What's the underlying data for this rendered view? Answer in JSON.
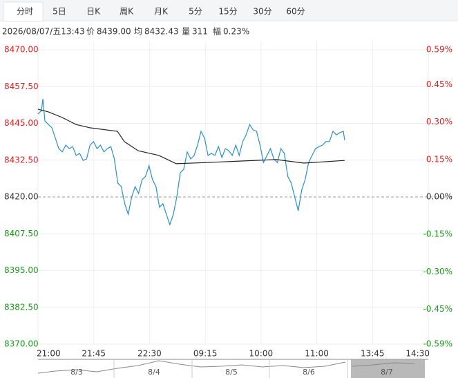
{
  "tabs": [
    "分时",
    "5日",
    "日K",
    "周K",
    "月K",
    "5分",
    "15分",
    "30分",
    "60分"
  ],
  "active_tab": 0,
  "info": {
    "time": "2026/08/07/五13:43",
    "items": [
      {
        "label": "价",
        "value": "8439.00"
      },
      {
        "label": "均",
        "value": "8432.43"
      },
      {
        "label": "量",
        "value": "311"
      },
      {
        "label": "幅",
        "value": "0.23%"
      }
    ]
  },
  "chart_data": {
    "type": "line",
    "xlim": [
      0,
      315
    ],
    "xticks": [
      {
        "value": 0,
        "label": "21:00"
      },
      {
        "value": 45,
        "label": "21:45"
      },
      {
        "value": 90,
        "label": "22:30"
      },
      {
        "value": 135,
        "label": "09:15"
      },
      {
        "value": 180,
        "label": "10:00"
      },
      {
        "value": 225,
        "label": "11:00"
      },
      {
        "value": 270,
        "label": "13:45"
      },
      {
        "value": 315,
        "label": "14:30"
      }
    ],
    "ylim": [
      8370,
      8470
    ],
    "yticks": [
      {
        "value": 8370,
        "label": "8370.00"
      },
      {
        "value": 8382.5,
        "label": "8382.50"
      },
      {
        "value": 8395,
        "label": "8395.00"
      },
      {
        "value": 8407.5,
        "label": "8407.50"
      },
      {
        "value": 8420,
        "label": "8420.00"
      },
      {
        "value": 8432.5,
        "label": "8432.50"
      },
      {
        "value": 8445,
        "label": "8445.00"
      },
      {
        "value": 8457.5,
        "label": "8457.50"
      },
      {
        "value": 8470,
        "label": "8470.00"
      }
    ],
    "y2lim": [
      -0.59,
      0.59
    ],
    "y2ticks": [
      {
        "value": -0.59,
        "label": "-0.59%"
      },
      {
        "value": -0.45,
        "label": "-0.45%"
      },
      {
        "value": -0.3,
        "label": "-0.30%"
      },
      {
        "value": -0.15,
        "label": "-0.15%"
      },
      {
        "value": 0,
        "label": "0.00%"
      },
      {
        "value": 0.15,
        "label": "0.15%"
      },
      {
        "value": 0.3,
        "label": "0.30%"
      },
      {
        "value": 0.45,
        "label": "0.45%"
      },
      {
        "value": 0.59,
        "label": "0.59%"
      }
    ],
    "reference": 8420,
    "up_color": "#e02020",
    "down_color": "#1a9a1a",
    "flat_color": "#333333",
    "grid": true,
    "series": [
      {
        "name": "价",
        "color": "#2a8fc4",
        "x": [
          0,
          2.8,
          3.9,
          5.6,
          8.4,
          11.2,
          14,
          16.8,
          19.6,
          22.4,
          25.2,
          28,
          30.8,
          33.6,
          36.4,
          39.2,
          42,
          44.8,
          47.6,
          50.4,
          53.2,
          56,
          58.8,
          61.6,
          64.4,
          67.2,
          70,
          72.8,
          75.6,
          78.4,
          81.2,
          84,
          86.8,
          89.6,
          92.4,
          95.2,
          98,
          100.8,
          103.6,
          106.4,
          109.2,
          112,
          114.8,
          117.6,
          120.4,
          123.2,
          126,
          128.8,
          131.6,
          134.4,
          137.2,
          140,
          142.8,
          145.6,
          148.4,
          151.2,
          154,
          156.8,
          159.6,
          162.4,
          165.2,
          168,
          170.8,
          173.6,
          176.4,
          179.2,
          182,
          184.8,
          187.6,
          190.4,
          193.2,
          196,
          198.8,
          201.6,
          204.4,
          207.2,
          210,
          212.8,
          215.6,
          218.4,
          221.2,
          224,
          226.8,
          229.6,
          232.4,
          235.2,
          238,
          240.8,
          243.6,
          246.4,
          247.5
        ],
        "values": [
          8448.2,
          8449.3,
          8453.3,
          8445.8,
          8444.6,
          8443.5,
          8440,
          8436.4,
          8435.3,
          8437.6,
          8436.4,
          8437.1,
          8434.1,
          8434.8,
          8432.4,
          8432.9,
          8437.6,
          8438.8,
          8436.4,
          8437.6,
          8435.3,
          8436.4,
          8437.1,
          8432.9,
          8424.7,
          8423.5,
          8417.7,
          8414.1,
          8420,
          8423.5,
          8421.2,
          8425.9,
          8427,
          8430.6,
          8425.9,
          8423.5,
          8416.5,
          8417.7,
          8414.1,
          8410.6,
          8414.1,
          8420,
          8428.2,
          8429.4,
          8435.3,
          8432.9,
          8434.1,
          8437.6,
          8442.3,
          8440,
          8434.1,
          8434.8,
          8434.1,
          8437.1,
          8433.4,
          8436.4,
          8435.7,
          8434.1,
          8437.6,
          8434.1,
          8438.8,
          8441.1,
          8444.6,
          8442.8,
          8442.3,
          8437.6,
          8431.7,
          8434.1,
          8436.4,
          8432.9,
          8431.7,
          8436.4,
          8434.8,
          8427,
          8424.7,
          8420,
          8415.3,
          8422.3,
          8425.9,
          8431.7,
          8434.1,
          8436.4,
          8437.1,
          8437.6,
          8438.8,
          8438.8,
          8442.3,
          8441.1,
          8441.8,
          8442.3,
          8439.3
        ]
      },
      {
        "name": "均",
        "color": "#222222",
        "x": [
          0,
          8.4,
          19.5,
          30.7,
          41.8,
          64.1,
          69.7,
          80.8,
          97.6,
          111.5,
          136.6,
          164.5,
          192.3,
          214.6,
          247.5
        ],
        "values": [
          8449.8,
          8448.9,
          8447,
          8444.6,
          8443.5,
          8442.3,
          8438.8,
          8435.7,
          8434.1,
          8431.3,
          8431.7,
          8432.2,
          8432.7,
          8431.5,
          8432.4
        ]
      }
    ]
  },
  "navigator": {
    "labels": [
      "8/3",
      "8/4",
      "8/5",
      "8/6",
      "8/7"
    ]
  }
}
